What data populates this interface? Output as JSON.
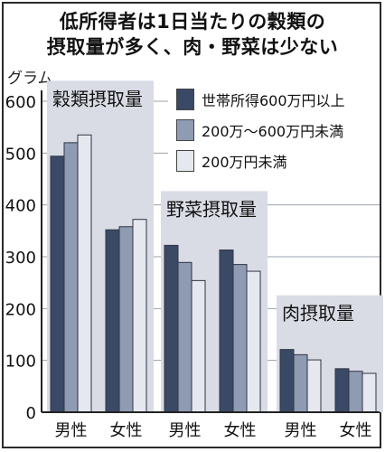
{
  "title_lines": [
    "低所得者は1日当たりの穀類の",
    "摂取量が多く、肉・野菜は少ない"
  ],
  "colors": {
    "high": "#3a4a66",
    "mid": "#8f9bb2",
    "low": "#e6e8ef",
    "panel": "#d9dce5",
    "grid": "#9aa0ad",
    "axis": "#222222"
  },
  "chart_data": {
    "type": "bar",
    "ylabel": "グラム",
    "ylim": [
      0,
      600
    ],
    "yticks": [
      0,
      100,
      200,
      300,
      400,
      500,
      600
    ],
    "grid": true,
    "legend_position": "top-right",
    "series": [
      {
        "name": "世帯所得600万円以上",
        "color_key": "high"
      },
      {
        "name": "200万～600万円未満",
        "color_key": "mid"
      },
      {
        "name": "200万円未満",
        "color_key": "low"
      }
    ],
    "groups": [
      {
        "label": "穀類摂取量",
        "categories": [
          {
            "name": "男性",
            "values": [
              494,
              520,
              535
            ]
          },
          {
            "name": "女性",
            "values": [
              352,
              358,
              372
            ]
          }
        ]
      },
      {
        "label": "野菜摂取量",
        "categories": [
          {
            "name": "男性",
            "values": [
              322,
              289,
              254
            ]
          },
          {
            "name": "女性",
            "values": [
              313,
              285,
              272
            ]
          }
        ]
      },
      {
        "label": "肉摂取量",
        "categories": [
          {
            "name": "男性",
            "values": [
              121,
              111,
              101
            ]
          },
          {
            "name": "女性",
            "values": [
              84,
              79,
              75
            ]
          }
        ]
      }
    ]
  }
}
